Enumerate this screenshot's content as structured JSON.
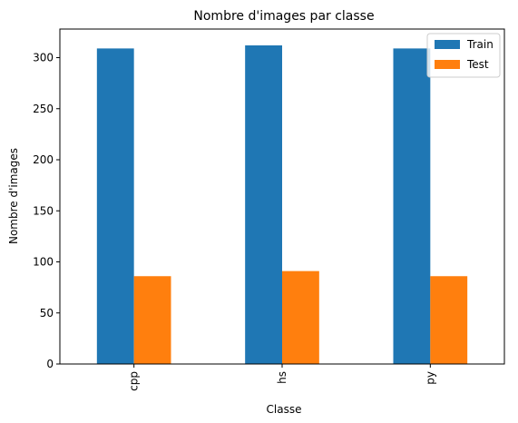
{
  "chart_data": {
    "type": "bar",
    "title": "Nombre d'images par classe",
    "xlabel": "Classe",
    "ylabel": "Nombre d'images",
    "categories": [
      "cpp",
      "hs",
      "py"
    ],
    "series": [
      {
        "name": "Train",
        "values": [
          309,
          312,
          309
        ],
        "color": "#1f77b4"
      },
      {
        "name": "Test",
        "values": [
          86,
          91,
          86
        ],
        "color": "#ff7f0e"
      }
    ],
    "ylim": [
      0,
      328
    ],
    "yticks": [
      0,
      50,
      100,
      150,
      200,
      250,
      300
    ],
    "grid": false,
    "legend": "top-right",
    "xtick_rotation": "vertical"
  }
}
